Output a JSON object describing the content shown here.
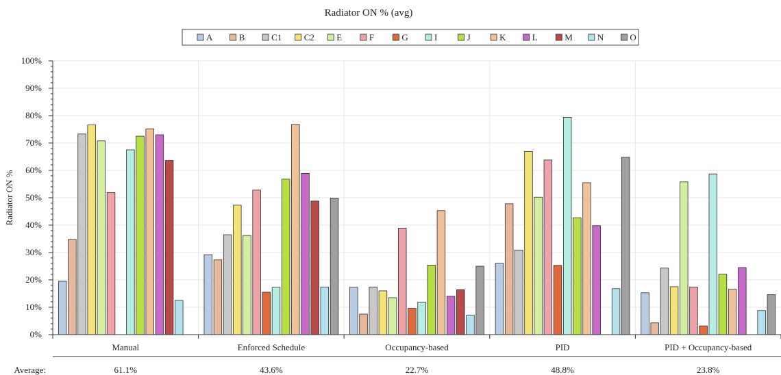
{
  "chart_data": {
    "type": "bar",
    "title": "Radiator ON % (avg)",
    "ylabel": "Radiator ON %",
    "xlabel": "",
    "ylim": [
      0,
      100
    ],
    "y_ticks": [
      "0%",
      "10%",
      "20%",
      "30%",
      "40%",
      "50%",
      "60%",
      "70%",
      "80%",
      "90%",
      "100%"
    ],
    "legend_position": "top",
    "grid": true,
    "categories": [
      "Manual",
      "Enforced Schedule",
      "Occupancy-based",
      "PID",
      "PID + Occupancy-based"
    ],
    "average_label": "Average:",
    "averages": [
      "61.1%",
      "43.6%",
      "22.7%",
      "48.8%",
      "23.8%"
    ],
    "series": [
      {
        "name": "A",
        "color": "#b8cce4",
        "values": [
          19.5,
          29.2,
          17.3,
          26.1,
          15.3
        ]
      },
      {
        "name": "B",
        "color": "#e6b89c",
        "values": [
          34.8,
          27.3,
          7.5,
          47.8,
          4.3
        ]
      },
      {
        "name": "C1",
        "color": "#c8c8c8",
        "values": [
          73.3,
          36.5,
          17.4,
          30.9,
          24.3
        ]
      },
      {
        "name": "C2",
        "color": "#f5e37a",
        "values": [
          76.6,
          47.3,
          16.0,
          66.9,
          17.5
        ]
      },
      {
        "name": "E",
        "color": "#d4eea0",
        "values": [
          70.8,
          36.2,
          13.5,
          50.2,
          55.8
        ]
      },
      {
        "name": "F",
        "color": "#eea3aa",
        "values": [
          51.9,
          52.8,
          38.9,
          63.8,
          17.4
        ]
      },
      {
        "name": "G",
        "color": "#e06a3c",
        "values": [
          null,
          15.5,
          9.6,
          25.3,
          3.2
        ]
      },
      {
        "name": "I",
        "color": "#b8ede4",
        "values": [
          67.5,
          17.3,
          11.9,
          79.4,
          58.7
        ]
      },
      {
        "name": "J",
        "color": "#b7de45",
        "values": [
          72.5,
          56.8,
          25.4,
          42.7,
          22.1
        ]
      },
      {
        "name": "K",
        "color": "#f0c29a",
        "values": [
          75.2,
          76.8,
          45.3,
          55.5,
          16.6
        ]
      },
      {
        "name": "L",
        "color": "#c86bc8",
        "values": [
          73.0,
          58.9,
          14.0,
          39.8,
          24.5
        ]
      },
      {
        "name": "M",
        "color": "#b94a4a",
        "values": [
          63.6,
          48.8,
          16.4,
          null,
          null
        ]
      },
      {
        "name": "N",
        "color": "#b5e0ee",
        "values": [
          12.5,
          17.4,
          7.1,
          16.8,
          8.8
        ]
      },
      {
        "name": "O",
        "color": "#a0a0a0",
        "values": [
          null,
          49.9,
          25.0,
          64.8,
          14.6
        ]
      }
    ]
  }
}
